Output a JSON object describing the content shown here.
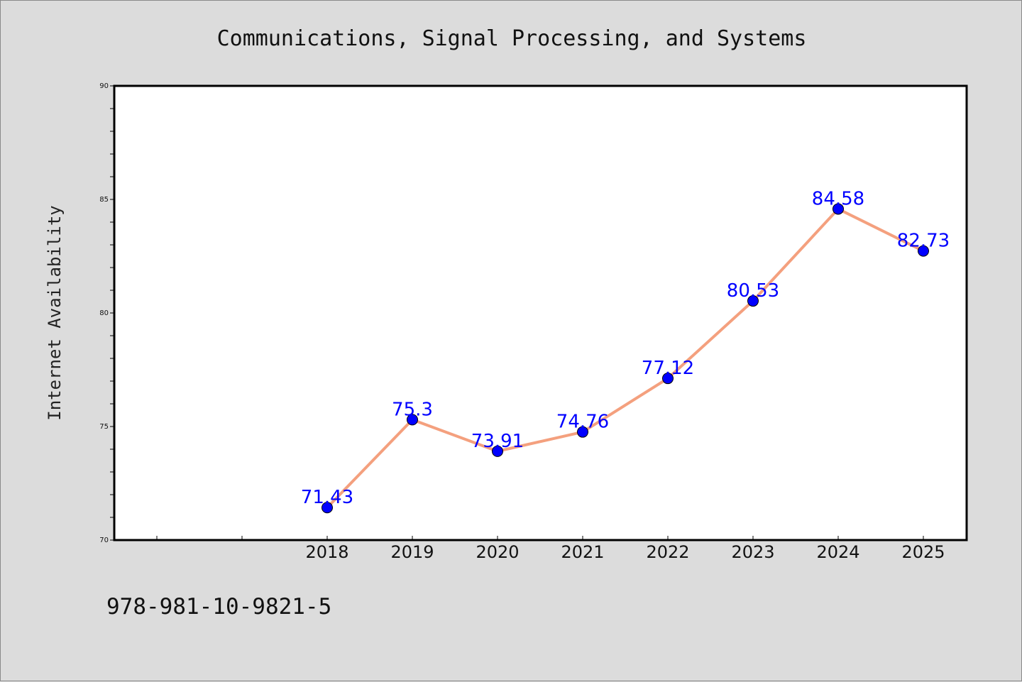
{
  "chart_data": {
    "type": "line",
    "title": "Communications, Signal Processing, and Systems",
    "xlabel": "",
    "ylabel": "Internet Availability",
    "categories": [
      "2018",
      "2019",
      "2020",
      "2021",
      "2022",
      "2023",
      "2024",
      "2025"
    ],
    "series": [
      {
        "values": [
          71.43,
          75.3,
          73.91,
          74.76,
          77.12,
          80.53,
          84.58,
          82.73
        ],
        "labels": [
          "71.43",
          "75.3",
          "73.91",
          "74.76",
          "77.12",
          "80.53",
          "84.58",
          "82.73"
        ],
        "line_color": "#f4a07e",
        "marker_color": "#0000ff"
      }
    ],
    "ylim": [
      70,
      90
    ],
    "yticks": [
      "70",
      "75",
      "80",
      "85",
      "90"
    ],
    "grid": false,
    "legend": "none"
  },
  "footnote": "978-981-10-9821-5"
}
